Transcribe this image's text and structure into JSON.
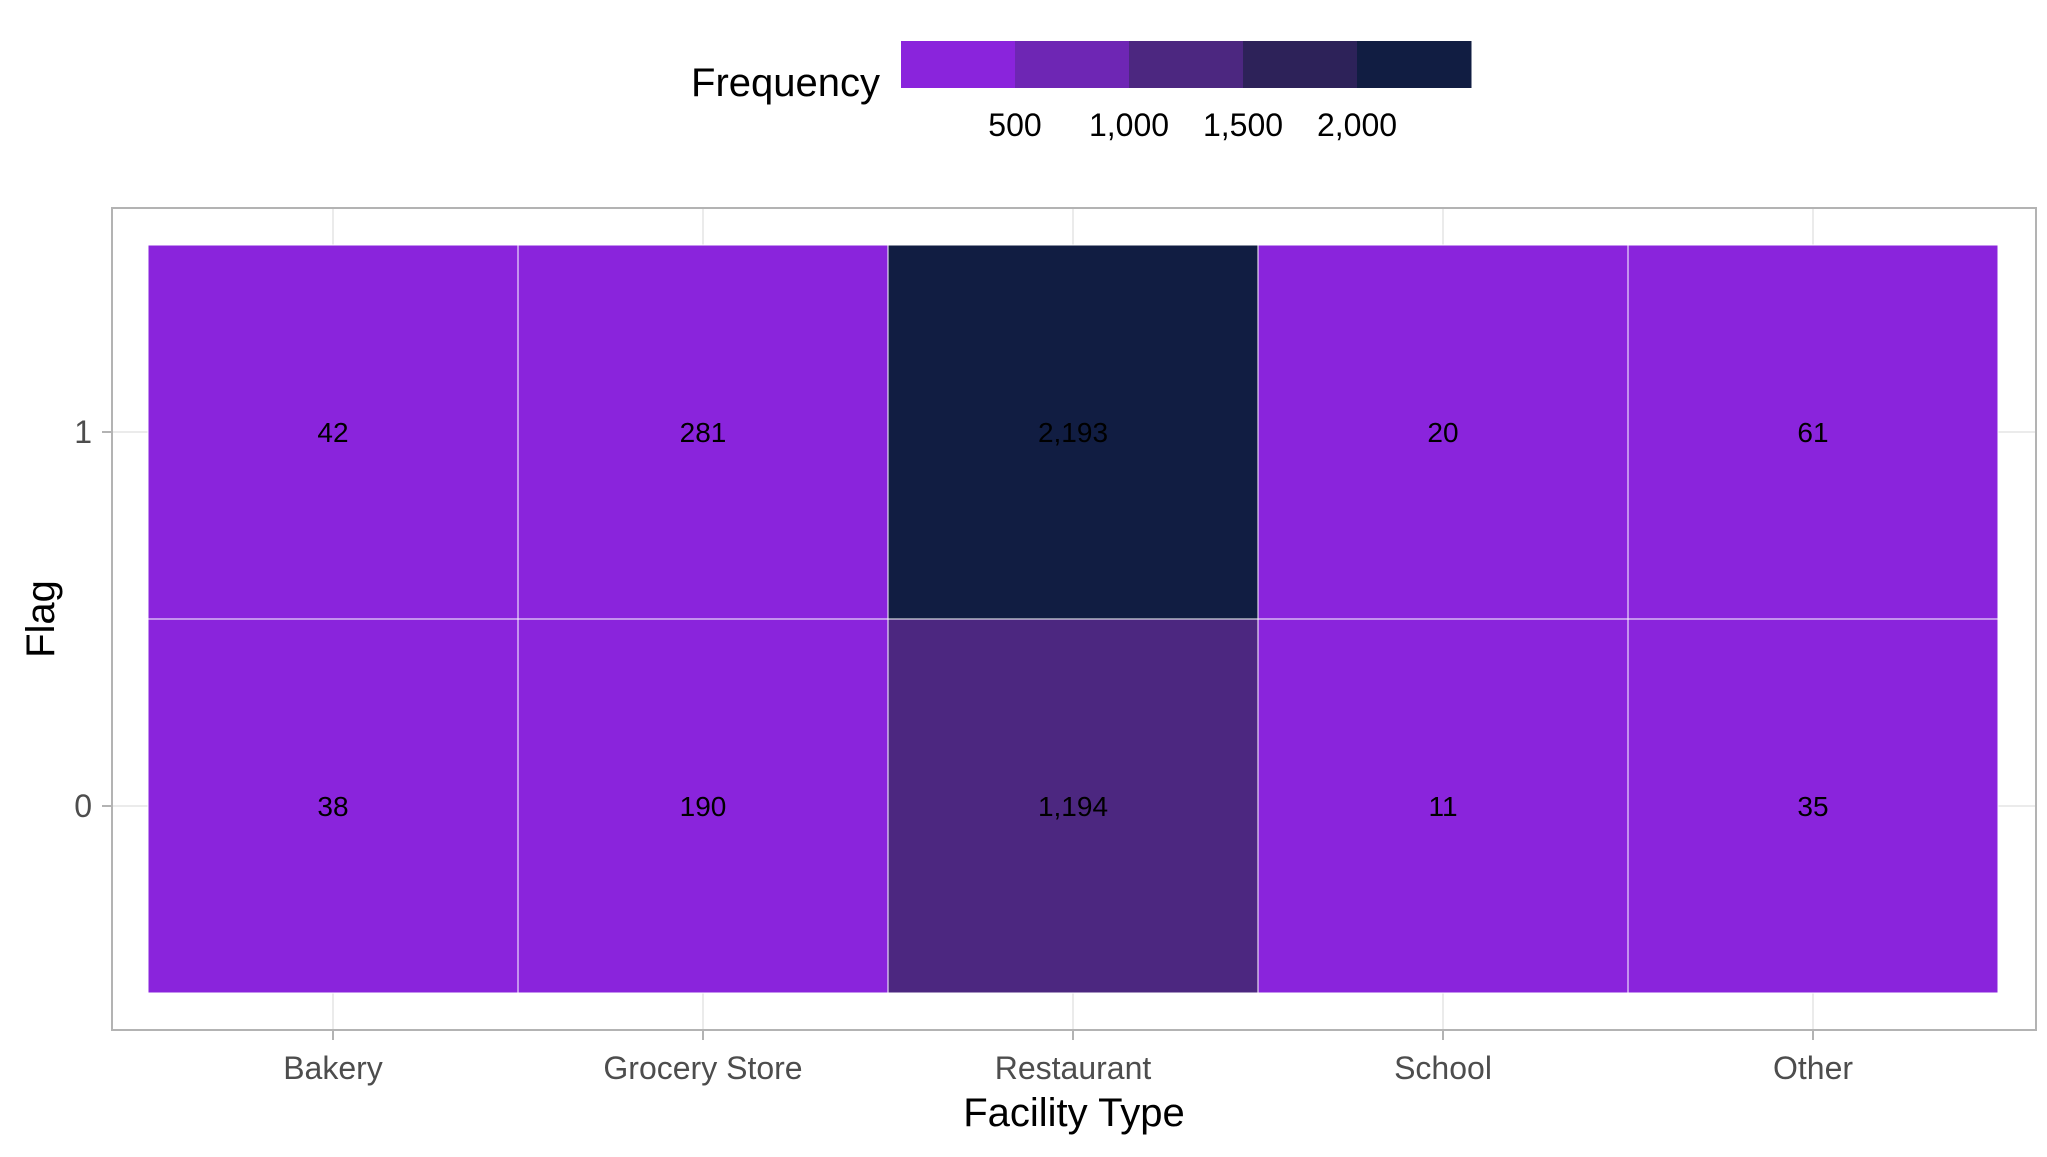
{
  "chart_data": {
    "type": "heatmap",
    "xlabel": "Facility Type",
    "ylabel": "Flag",
    "x_categories": [
      "Bakery",
      "Grocery Store",
      "Restaurant",
      "School",
      "Other"
    ],
    "y_categories": [
      "1",
      "0"
    ],
    "values": [
      [
        42,
        281,
        2193,
        20,
        61
      ],
      [
        38,
        190,
        1194,
        11,
        35
      ]
    ],
    "value_labels": [
      [
        "42",
        "281",
        "2,193",
        "20",
        "61"
      ],
      [
        "38",
        "190",
        "1,194",
        "11",
        "35"
      ]
    ],
    "legend": {
      "title": "Frequency",
      "position": "top",
      "tick_labels": [
        "500",
        "1,000",
        "1,500",
        "2,000"
      ],
      "bins": [
        {
          "min": 0,
          "max": 500,
          "color": "#8a24dc"
        },
        {
          "min": 500,
          "max": 1000,
          "color": "#6e26b4"
        },
        {
          "min": 1000,
          "max": 1500,
          "color": "#4c2780"
        },
        {
          "min": 1500,
          "max": 2000,
          "color": "#2d2259"
        },
        {
          "min": 2000,
          "max": 2500,
          "color": "#111d42"
        }
      ]
    },
    "grid": true,
    "colors": {
      "panel_border": "#b3b3b3",
      "grid": "#ebebeb",
      "tick_label": "#4d4d4d",
      "axis_title": "#000000",
      "cell_label": "#000000",
      "tile_border": "#ffffff"
    }
  }
}
